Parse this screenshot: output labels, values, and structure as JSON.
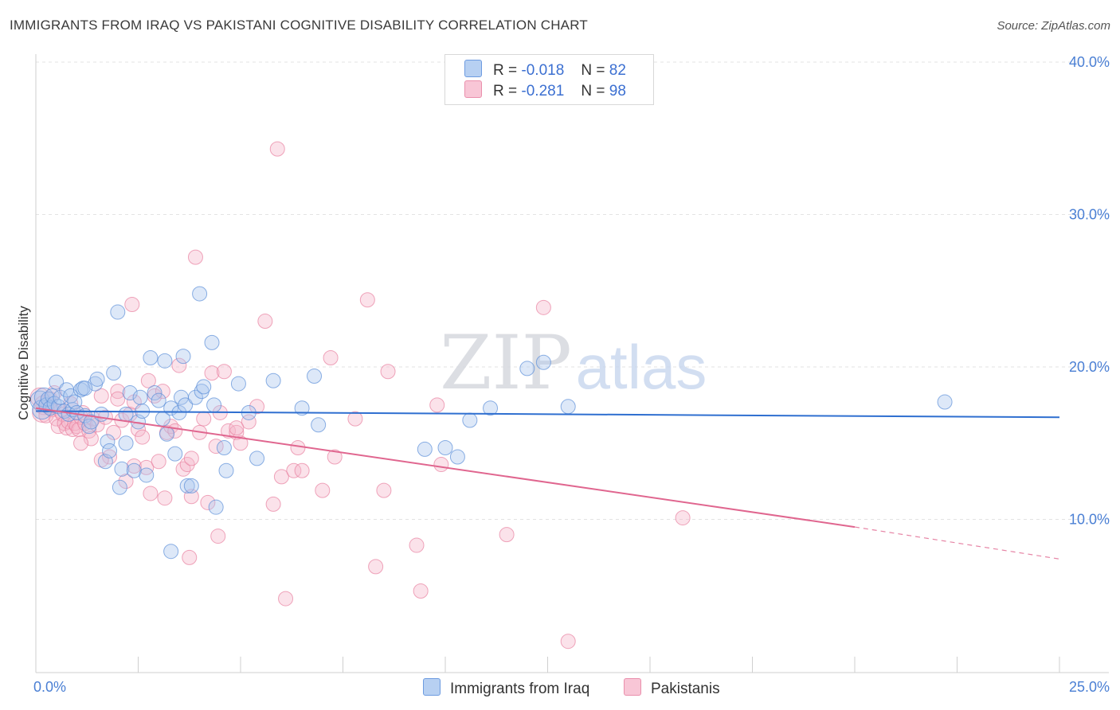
{
  "title": "IMMIGRANTS FROM IRAQ VS PAKISTANI COGNITIVE DISABILITY CORRELATION CHART",
  "source": "Source: ZipAtlas.com",
  "watermark": {
    "zip": "ZIP",
    "atlas": "atlas"
  },
  "legend": {
    "series1": {
      "r_label": "R =",
      "r_value": "-0.018",
      "n_label": "N =",
      "n_value": "82"
    },
    "series2": {
      "r_label": "R =",
      "r_value": "-0.281",
      "n_label": "N =",
      "n_value": "98"
    }
  },
  "chart_data": {
    "type": "scatter",
    "title": "IMMIGRANTS FROM IRAQ VS PAKISTANI COGNITIVE DISABILITY CORRELATION CHART",
    "xlabel": "",
    "ylabel": "Cognitive Disability",
    "xlim": [
      0,
      25
    ],
    "ylim": [
      0,
      40
    ],
    "x_tick_labels": [
      "0.0%",
      "25.0%"
    ],
    "y_ticks": [
      10,
      20,
      30,
      40
    ],
    "y_tick_labels": [
      "10.0%",
      "20.0%",
      "30.0%",
      "40.0%"
    ],
    "grid": true,
    "colors": {
      "iraq_fill": "#a9c6ee",
      "iraq_stroke": "#5b8fd8",
      "iraq_line": "#2f6fd0",
      "pak_fill": "#f6b6cb",
      "pak_stroke": "#e8809f",
      "pak_line": "#e0668f"
    },
    "series": [
      {
        "name": "Immigrants from Iraq",
        "trend": {
          "x0": 0,
          "y0": 17.1,
          "x1": 25,
          "y1": 16.7
        },
        "points": [
          [
            0.1,
            17.8
          ],
          [
            0.15,
            17.2
          ],
          [
            0.2,
            18.0
          ],
          [
            0.25,
            17.5
          ],
          [
            0.3,
            17.9
          ],
          [
            0.35,
            17.3
          ],
          [
            0.4,
            18.1
          ],
          [
            0.45,
            17.6
          ],
          [
            0.5,
            19.0
          ],
          [
            0.55,
            17.4
          ],
          [
            0.6,
            18.0
          ],
          [
            0.7,
            17.1
          ],
          [
            0.75,
            18.5
          ],
          [
            0.8,
            16.9
          ],
          [
            0.85,
            18.1
          ],
          [
            0.9,
            17.2
          ],
          [
            0.95,
            17.7
          ],
          [
            1.0,
            17.0
          ],
          [
            1.1,
            18.5
          ],
          [
            1.15,
            18.6
          ],
          [
            1.2,
            16.8
          ],
          [
            1.3,
            16.1
          ],
          [
            1.35,
            16.4
          ],
          [
            1.45,
            18.9
          ],
          [
            1.5,
            19.2
          ],
          [
            1.6,
            16.9
          ],
          [
            1.7,
            13.8
          ],
          [
            1.75,
            15.1
          ],
          [
            1.8,
            14.5
          ],
          [
            1.9,
            19.6
          ],
          [
            2.0,
            23.6
          ],
          [
            2.05,
            12.1
          ],
          [
            2.1,
            13.3
          ],
          [
            2.2,
            15.0
          ],
          [
            2.3,
            18.3
          ],
          [
            2.4,
            13.2
          ],
          [
            2.5,
            16.4
          ],
          [
            2.55,
            18.0
          ],
          [
            2.6,
            17.1
          ],
          [
            2.7,
            12.9
          ],
          [
            2.8,
            20.6
          ],
          [
            2.9,
            18.3
          ],
          [
            3.0,
            17.8
          ],
          [
            3.1,
            16.6
          ],
          [
            3.15,
            20.4
          ],
          [
            3.2,
            15.6
          ],
          [
            3.3,
            17.3
          ],
          [
            3.4,
            14.3
          ],
          [
            3.5,
            17.0
          ],
          [
            3.55,
            18.0
          ],
          [
            3.6,
            20.7
          ],
          [
            3.65,
            17.5
          ],
          [
            3.7,
            12.2
          ],
          [
            3.8,
            12.2
          ],
          [
            3.9,
            18.0
          ],
          [
            4.0,
            24.8
          ],
          [
            4.05,
            18.4
          ],
          [
            4.1,
            18.7
          ],
          [
            4.3,
            21.6
          ],
          [
            4.35,
            17.5
          ],
          [
            4.4,
            10.8
          ],
          [
            4.6,
            14.7
          ],
          [
            4.65,
            13.2
          ],
          [
            4.95,
            18.9
          ],
          [
            5.2,
            17.0
          ],
          [
            5.4,
            14.0
          ],
          [
            5.8,
            19.1
          ],
          [
            6.5,
            17.3
          ],
          [
            6.8,
            19.4
          ],
          [
            6.9,
            16.2
          ],
          [
            9.5,
            14.6
          ],
          [
            10.0,
            14.7
          ],
          [
            10.3,
            14.1
          ],
          [
            10.6,
            16.5
          ],
          [
            11.1,
            17.3
          ],
          [
            12.0,
            19.9
          ],
          [
            12.4,
            20.3
          ],
          [
            13.0,
            17.4
          ],
          [
            22.2,
            17.7
          ],
          [
            3.3,
            7.9
          ],
          [
            2.2,
            16.9
          ],
          [
            1.2,
            18.6
          ]
        ]
      },
      {
        "name": "Pakistanis",
        "trend": {
          "x0": 0,
          "y0": 17.3,
          "x1": 20.0,
          "y1": 9.5,
          "dash_to_x": 25,
          "dash_to_y": 7.4
        },
        "points": [
          [
            0.1,
            18.0
          ],
          [
            0.15,
            17.0
          ],
          [
            0.2,
            17.5
          ],
          [
            0.25,
            16.8
          ],
          [
            0.3,
            17.4
          ],
          [
            0.35,
            17.9
          ],
          [
            0.4,
            17.2
          ],
          [
            0.5,
            16.6
          ],
          [
            0.55,
            16.1
          ],
          [
            0.6,
            17.1
          ],
          [
            0.65,
            16.9
          ],
          [
            0.7,
            16.3
          ],
          [
            0.75,
            16.0
          ],
          [
            0.8,
            16.4
          ],
          [
            0.85,
            17.6
          ],
          [
            0.9,
            15.9
          ],
          [
            0.95,
            16.3
          ],
          [
            1.0,
            16.1
          ],
          [
            1.05,
            15.9
          ],
          [
            1.1,
            16.7
          ],
          [
            1.15,
            17.0
          ],
          [
            1.2,
            16.3
          ],
          [
            1.3,
            15.8
          ],
          [
            1.35,
            15.3
          ],
          [
            1.4,
            16.6
          ],
          [
            1.5,
            16.2
          ],
          [
            1.6,
            18.1
          ],
          [
            1.7,
            16.7
          ],
          [
            1.8,
            14.1
          ],
          [
            1.9,
            15.7
          ],
          [
            2.0,
            18.4
          ],
          [
            2.1,
            16.5
          ],
          [
            2.2,
            12.5
          ],
          [
            2.3,
            16.9
          ],
          [
            2.35,
            24.1
          ],
          [
            2.4,
            13.5
          ],
          [
            2.5,
            15.9
          ],
          [
            2.6,
            15.4
          ],
          [
            2.7,
            13.4
          ],
          [
            2.75,
            19.1
          ],
          [
            2.8,
            11.7
          ],
          [
            2.9,
            18.1
          ],
          [
            3.0,
            13.8
          ],
          [
            3.1,
            18.4
          ],
          [
            3.15,
            11.4
          ],
          [
            3.2,
            15.7
          ],
          [
            3.3,
            16.1
          ],
          [
            3.4,
            15.8
          ],
          [
            3.5,
            20.1
          ],
          [
            3.6,
            13.3
          ],
          [
            3.7,
            13.6
          ],
          [
            3.75,
            7.5
          ],
          [
            3.8,
            11.5
          ],
          [
            3.9,
            27.2
          ],
          [
            4.0,
            15.7
          ],
          [
            4.1,
            16.6
          ],
          [
            4.2,
            11.1
          ],
          [
            4.3,
            19.6
          ],
          [
            4.4,
            14.8
          ],
          [
            4.45,
            8.9
          ],
          [
            4.5,
            17.0
          ],
          [
            4.6,
            19.7
          ],
          [
            4.7,
            15.8
          ],
          [
            4.9,
            15.7
          ],
          [
            5.0,
            15.0
          ],
          [
            5.2,
            16.4
          ],
          [
            5.4,
            17.4
          ],
          [
            5.6,
            23.0
          ],
          [
            5.8,
            11.0
          ],
          [
            5.9,
            34.3
          ],
          [
            6.0,
            12.8
          ],
          [
            6.1,
            4.8
          ],
          [
            6.3,
            13.2
          ],
          [
            6.4,
            14.7
          ],
          [
            6.5,
            13.2
          ],
          [
            7.0,
            11.9
          ],
          [
            7.2,
            20.6
          ],
          [
            7.3,
            14.1
          ],
          [
            7.8,
            16.6
          ],
          [
            8.1,
            24.4
          ],
          [
            8.3,
            6.9
          ],
          [
            8.5,
            11.9
          ],
          [
            8.6,
            19.7
          ],
          [
            9.3,
            8.3
          ],
          [
            9.4,
            5.3
          ],
          [
            9.8,
            17.5
          ],
          [
            9.9,
            13.6
          ],
          [
            11.5,
            9.0
          ],
          [
            12.4,
            23.9
          ],
          [
            13.0,
            2.0
          ],
          [
            15.8,
            10.1
          ],
          [
            2.4,
            17.7
          ],
          [
            1.1,
            15.0
          ],
          [
            0.45,
            18.3
          ],
          [
            3.8,
            14.0
          ],
          [
            1.6,
            13.9
          ],
          [
            2.0,
            17.9
          ],
          [
            4.9,
            16.0
          ]
        ]
      }
    ]
  },
  "bottom_legend": {
    "series1_label": "Immigrants from Iraq",
    "series2_label": "Pakistanis"
  }
}
